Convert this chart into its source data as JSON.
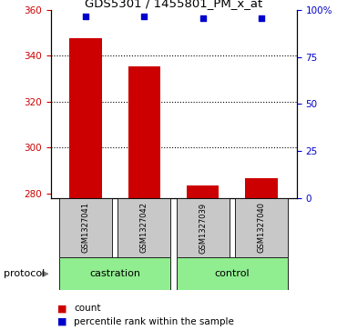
{
  "title": "GDS5301 / 1455801_PM_x_at",
  "samples": [
    "GSM1327041",
    "GSM1327042",
    "GSM1327039",
    "GSM1327040"
  ],
  "count_values": [
    347.5,
    335.5,
    283.5,
    286.5
  ],
  "percentile_values": [
    96.5,
    96.5,
    95.5,
    95.5
  ],
  "groups": [
    {
      "label": "castration",
      "indices": [
        0,
        1
      ]
    },
    {
      "label": "control",
      "indices": [
        2,
        3
      ]
    }
  ],
  "ylim_left": [
    278,
    360
  ],
  "ylim_right": [
    0,
    100
  ],
  "yticks_left": [
    280,
    300,
    320,
    340,
    360
  ],
  "yticks_right": [
    0,
    25,
    50,
    75,
    100
  ],
  "ytick_labels_right": [
    "0",
    "25",
    "50",
    "75",
    "100%"
  ],
  "grid_values": [
    300,
    320,
    340
  ],
  "bar_color": "#cc0000",
  "scatter_color": "#0000cc",
  "group_bg_color": "#90ee90",
  "sample_bg_color": "#c8c8c8",
  "left_axis_color": "#cc0000",
  "right_axis_color": "#0000cc",
  "legend_bar_label": "count",
  "legend_scatter_label": "percentile rank within the sample",
  "protocol_label": "protocol",
  "bar_width": 0.55
}
